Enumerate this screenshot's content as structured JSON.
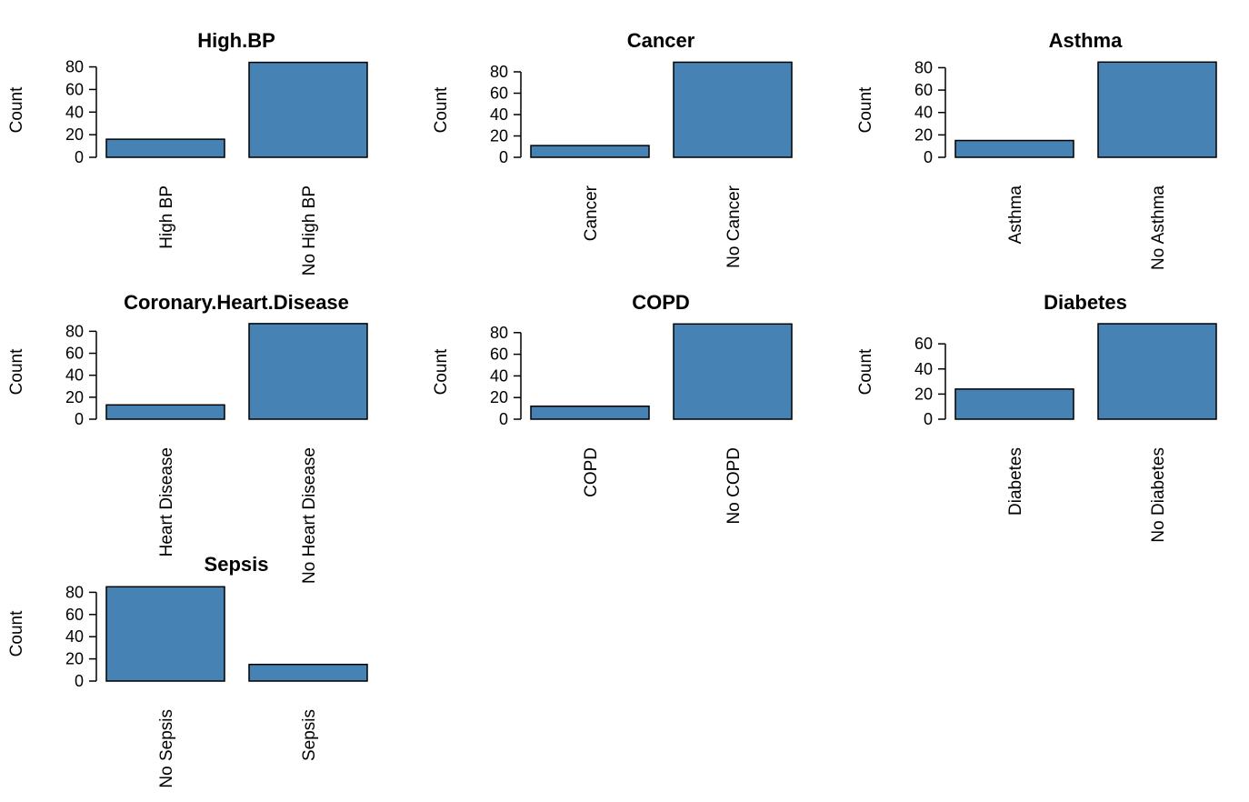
{
  "colors": {
    "bar_fill": "#4682b4",
    "bar_stroke": "#000000",
    "background": "#ffffff"
  },
  "chart_data": [
    {
      "type": "bar",
      "title": "High.BP",
      "ylabel": "Count",
      "categories": [
        "High BP",
        "No High BP"
      ],
      "values": [
        16,
        84
      ],
      "ylim": [
        0,
        80
      ],
      "yticks": [
        0,
        20,
        40,
        60,
        80
      ],
      "grid": false
    },
    {
      "type": "bar",
      "title": "Cancer",
      "ylabel": "Count",
      "categories": [
        "Cancer",
        "No Cancer"
      ],
      "values": [
        11,
        89
      ],
      "ylim": [
        0,
        80
      ],
      "yticks": [
        0,
        20,
        40,
        60,
        80
      ],
      "grid": false
    },
    {
      "type": "bar",
      "title": "Asthma",
      "ylabel": "Count",
      "categories": [
        "Asthma",
        "No Asthma"
      ],
      "values": [
        15,
        85
      ],
      "ylim": [
        0,
        80
      ],
      "yticks": [
        0,
        20,
        40,
        60,
        80
      ],
      "grid": false
    },
    {
      "type": "bar",
      "title": "Coronary.Heart.Disease",
      "ylabel": "Count",
      "categories": [
        "Heart Disease",
        "No Heart Disease"
      ],
      "values": [
        13,
        87
      ],
      "ylim": [
        0,
        80
      ],
      "yticks": [
        0,
        20,
        40,
        60,
        80
      ],
      "grid": false
    },
    {
      "type": "bar",
      "title": "COPD",
      "ylabel": "Count",
      "categories": [
        "COPD",
        "No COPD"
      ],
      "values": [
        12,
        88
      ],
      "ylim": [
        0,
        80
      ],
      "yticks": [
        0,
        20,
        40,
        60,
        80
      ],
      "grid": false
    },
    {
      "type": "bar",
      "title": "Diabetes",
      "ylabel": "Count",
      "categories": [
        "Diabetes",
        "No Diabetes"
      ],
      "values": [
        24,
        76
      ],
      "ylim": [
        0,
        70
      ],
      "yticks": [
        0,
        20,
        40,
        60
      ],
      "grid": false
    },
    {
      "type": "bar",
      "title": "Sepsis",
      "ylabel": "Count",
      "categories": [
        "No Sepsis",
        "Sepsis"
      ],
      "values": [
        85,
        15
      ],
      "ylim": [
        0,
        80
      ],
      "yticks": [
        0,
        20,
        40,
        60,
        80
      ],
      "grid": false
    }
  ]
}
